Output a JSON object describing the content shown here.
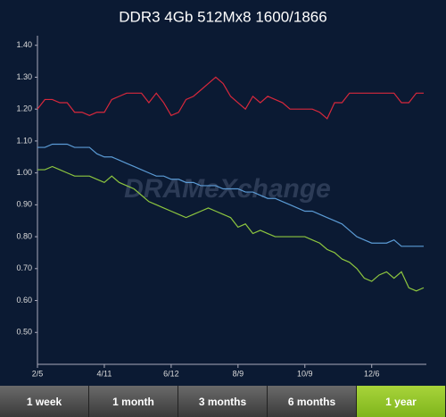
{
  "chart_data": {
    "type": "line",
    "title": "DDR3 4Gb 512Mx8 1600/1866",
    "watermark": "DRAMeXchange",
    "categories": [
      "2/5",
      null,
      null,
      null,
      null,
      null,
      null,
      null,
      null,
      "4/11",
      null,
      null,
      null,
      null,
      null,
      null,
      null,
      null,
      "6/12",
      null,
      null,
      null,
      null,
      null,
      null,
      null,
      null,
      "8/9",
      null,
      null,
      null,
      null,
      null,
      null,
      null,
      null,
      "10/9",
      null,
      null,
      null,
      null,
      null,
      null,
      null,
      null,
      "12/6",
      null,
      null,
      null,
      null,
      null,
      null,
      null
    ],
    "series": [
      {
        "color": "#d8283c",
        "values": [
          1.2,
          1.23,
          1.23,
          1.22,
          1.22,
          1.19,
          1.19,
          1.18,
          1.19,
          1.19,
          1.23,
          1.24,
          1.25,
          1.25,
          1.25,
          1.22,
          1.25,
          1.22,
          1.18,
          1.19,
          1.23,
          1.24,
          1.26,
          1.28,
          1.3,
          1.28,
          1.24,
          1.22,
          1.2,
          1.24,
          1.22,
          1.24,
          1.23,
          1.22,
          1.2,
          1.2,
          1.2,
          1.2,
          1.19,
          1.17,
          1.22,
          1.22,
          1.25,
          1.25,
          1.25,
          1.25,
          1.25,
          1.25,
          1.25,
          1.22,
          1.22,
          1.25,
          1.25
        ]
      },
      {
        "color": "#5b9bd5",
        "values": [
          1.08,
          1.08,
          1.09,
          1.09,
          1.09,
          1.08,
          1.08,
          1.08,
          1.06,
          1.05,
          1.05,
          1.04,
          1.03,
          1.02,
          1.01,
          1.0,
          0.99,
          0.99,
          0.98,
          0.98,
          0.97,
          0.97,
          0.96,
          0.96,
          0.96,
          0.95,
          0.95,
          0.95,
          0.94,
          0.94,
          0.93,
          0.92,
          0.92,
          0.91,
          0.9,
          0.89,
          0.88,
          0.88,
          0.87,
          0.86,
          0.85,
          0.84,
          0.82,
          0.8,
          0.79,
          0.78,
          0.78,
          0.78,
          0.79,
          0.77,
          0.77,
          0.77,
          0.77
        ]
      },
      {
        "color": "#8dc63f",
        "values": [
          1.01,
          1.01,
          1.02,
          1.01,
          1.0,
          0.99,
          0.99,
          0.99,
          0.98,
          0.97,
          0.99,
          0.97,
          0.96,
          0.95,
          0.93,
          0.91,
          0.9,
          0.89,
          0.88,
          0.87,
          0.86,
          0.87,
          0.88,
          0.89,
          0.88,
          0.87,
          0.86,
          0.83,
          0.84,
          0.81,
          0.82,
          0.81,
          0.8,
          0.8,
          0.8,
          0.8,
          0.8,
          0.79,
          0.78,
          0.76,
          0.75,
          0.73,
          0.72,
          0.7,
          0.67,
          0.66,
          0.68,
          0.69,
          0.67,
          0.69,
          0.64,
          0.63,
          0.64
        ]
      }
    ],
    "ylim": [
      0.4,
      1.43
    ],
    "yticks": [
      {
        "value": 0.5,
        "label": "0.50"
      },
      {
        "value": 0.6,
        "label": "0.60"
      },
      {
        "value": 0.7,
        "label": "0.70"
      },
      {
        "value": 0.8,
        "label": "0.80"
      },
      {
        "value": 0.9,
        "label": "0.90"
      },
      {
        "value": 1.0,
        "label": "1.00"
      },
      {
        "value": 1.1,
        "label": "1.10"
      },
      {
        "value": 1.2,
        "label": "1.20"
      },
      {
        "value": 1.3,
        "label": "1.30"
      },
      {
        "value": 1.4,
        "label": "1.40"
      }
    ],
    "grid": false
  },
  "tabs": {
    "items": [
      "1 week",
      "1 month",
      "3 months",
      "6 months",
      "1 year"
    ],
    "active": 4
  }
}
